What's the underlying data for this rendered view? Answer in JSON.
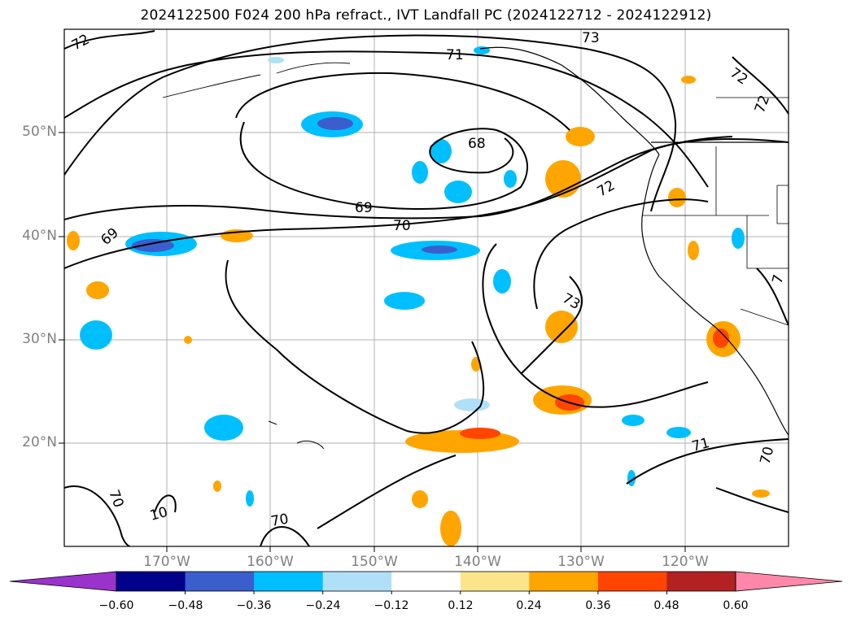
{
  "title": "2024122500 F024 200 hPa refract., IVT Landfall PC (2024122712 - 2024122912)",
  "map": {
    "latitude_labels": [
      "50°N",
      "40°N",
      "30°N",
      "20°N"
    ],
    "longitude_labels": [
      "170°W",
      "160°W",
      "150°W",
      "140°W",
      "130°W",
      "120°W"
    ],
    "contour_labels": [
      "72",
      "73",
      "71",
      "72",
      "72",
      "68",
      "72",
      "69",
      "70",
      "69",
      "73",
      "71",
      "70",
      "70",
      "10",
      "70",
      "7"
    ],
    "grid": true
  },
  "colorbar": {
    "tick_labels": [
      "−0.60",
      "−0.48",
      "−0.36",
      "−0.24",
      "−0.12",
      "0.12",
      "0.24",
      "0.36",
      "0.48",
      "0.60"
    ],
    "colors": [
      "#9933cc",
      "#00008b",
      "#3a5fcd",
      "#00bfff",
      "#b0e0f8",
      "#ffffff",
      "#fce48a",
      "#ffa500",
      "#ff4500",
      "#b22222",
      "#ff88aa"
    ]
  }
}
